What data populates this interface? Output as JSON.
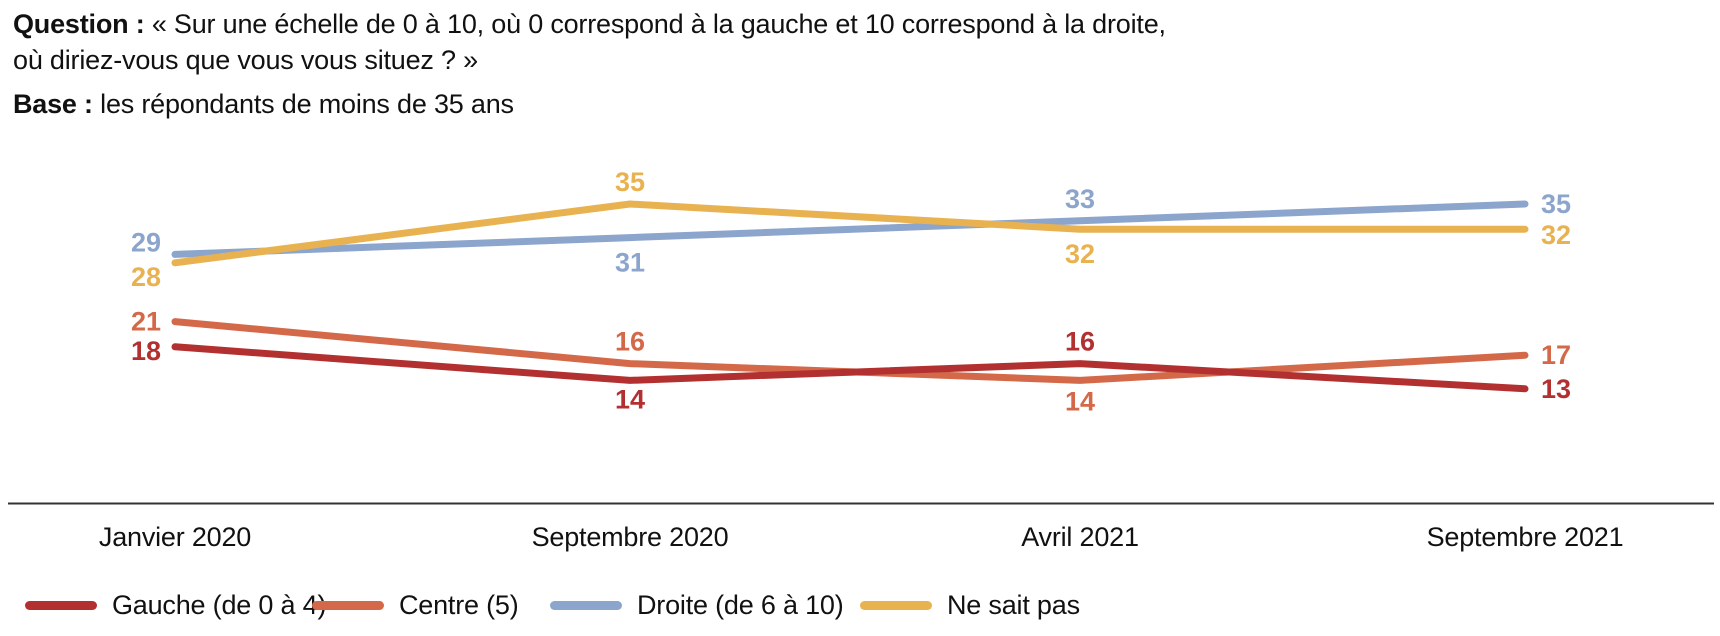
{
  "header": {
    "question_label": "Question :",
    "question_line1": "« Sur une échelle de 0 à 10, où 0 correspond à la gauche et 10 correspond à la droite,",
    "question_line2": "où diriez-vous que vous vous situez ? »",
    "base_label": "Base :",
    "base_text": "les répondants de moins de 35 ans"
  },
  "chart_data": {
    "type": "line",
    "categories": [
      "Janvier 2020",
      "Septembre 2020",
      "Avril 2021",
      "Septembre 2021"
    ],
    "series": [
      {
        "name": "Gauche (de 0 à 4)",
        "color": "#B23130",
        "values": [
          18,
          14,
          16,
          13
        ],
        "label_pos": [
          "left",
          "below",
          "above",
          "right"
        ],
        "label_dy": [
          4,
          -6,
          0,
          0
        ]
      },
      {
        "name": "Centre (5)",
        "color": "#D4694A",
        "values": [
          21,
          16,
          14,
          17
        ],
        "label_pos": [
          "left",
          "above",
          "below",
          "right"
        ],
        "label_dy": [
          0,
          0,
          -4,
          0
        ]
      },
      {
        "name": "Droite (de 6 à 10)",
        "color": "#8CA5CC",
        "values": [
          29,
          31,
          33,
          35
        ],
        "label_pos": [
          "left",
          "below",
          "above",
          "right"
        ],
        "label_dy": [
          -12,
          0,
          0,
          0
        ]
      },
      {
        "name": "Ne sait pas",
        "color": "#E9B251",
        "values": [
          28,
          35,
          32,
          32
        ],
        "label_pos": [
          "left",
          "above",
          "below",
          "right"
        ],
        "label_dy": [
          14,
          0,
          0,
          6
        ]
      }
    ],
    "ylim": [
      0,
      40
    ],
    "grid": false,
    "legend_position": "bottom",
    "draw_order": [
      1,
      0,
      2,
      3
    ],
    "axis_color": "#333333",
    "text_color": "#111111"
  }
}
